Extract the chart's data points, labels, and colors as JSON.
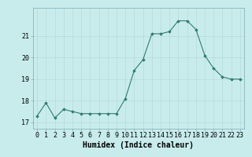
{
  "x": [
    0,
    1,
    2,
    3,
    4,
    5,
    6,
    7,
    8,
    9,
    10,
    11,
    12,
    13,
    14,
    15,
    16,
    17,
    18,
    19,
    20,
    21,
    22,
    23
  ],
  "y": [
    17.3,
    17.9,
    17.2,
    17.6,
    17.5,
    17.4,
    17.4,
    17.4,
    17.4,
    17.4,
    18.1,
    19.4,
    19.9,
    21.1,
    21.1,
    21.2,
    21.7,
    21.7,
    21.3,
    20.1,
    19.5,
    19.1,
    19.0,
    19.0
  ],
  "line_color": "#2e7d6e",
  "marker": "D",
  "marker_size": 1.8,
  "bg_color": "#c8ecec",
  "grid_color": "#b8d8d8",
  "xlabel": "Humidex (Indice chaleur)",
  "xlabel_fontsize": 7,
  "tick_fontsize": 6,
  "ylim": [
    16.7,
    22.3
  ],
  "xlim": [
    -0.5,
    23.5
  ],
  "yticks": [
    17,
    18,
    19,
    20,
    21
  ],
  "xticks": [
    0,
    1,
    2,
    3,
    4,
    5,
    6,
    7,
    8,
    9,
    10,
    11,
    12,
    13,
    14,
    15,
    16,
    17,
    18,
    19,
    20,
    21,
    22,
    23
  ]
}
